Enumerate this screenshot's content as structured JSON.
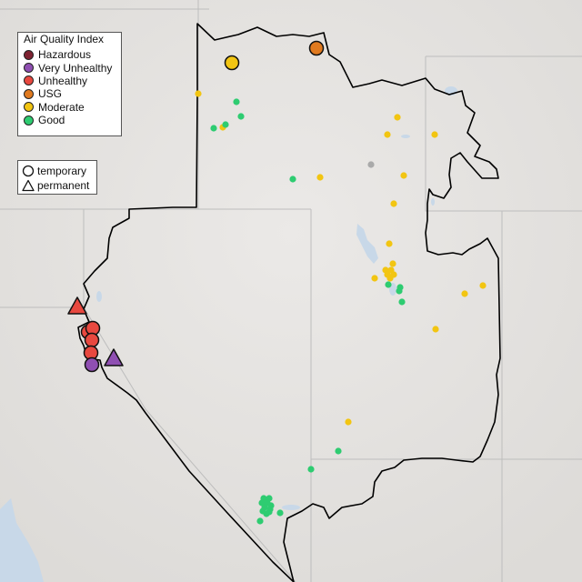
{
  "legend_aqi": {
    "title": "Air Quality Index",
    "items": [
      {
        "label": "Hazardous",
        "color": "#7e2232"
      },
      {
        "label": "Very Unhealthy",
        "color": "#8f4fb2"
      },
      {
        "label": "Unhealthy",
        "color": "#e8483f"
      },
      {
        "label": "USG",
        "color": "#e07a1f"
      },
      {
        "label": "Moderate",
        "color": "#f2c512"
      },
      {
        "label": "Good",
        "color": "#2ecc71"
      }
    ]
  },
  "legend_type": {
    "items": [
      {
        "label": "temporary",
        "icon": "circle-icon"
      },
      {
        "label": "permanent",
        "icon": "triangle-icon"
      }
    ]
  },
  "colors": {
    "land": "#e6e4e2",
    "water": "#c8d8e8",
    "state_border": "#bdbdbd",
    "region_outline": "#000000",
    "unknown_sensor": "#aaaaaa"
  }
}
